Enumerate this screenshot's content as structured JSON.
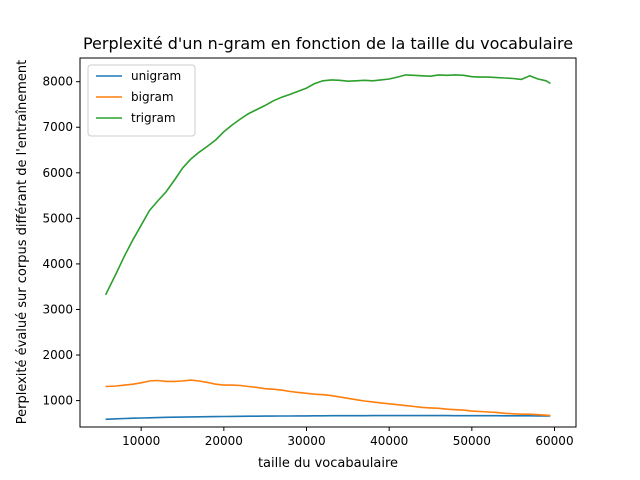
{
  "chart_data": {
    "type": "line",
    "title": "Perplexité d'un n-gram en fonction de la taille du vocabulaire",
    "xlabel": "taille du vocabaulaire",
    "ylabel": "Perplexité évalué sur corpus différant de l'entraînement",
    "xlim": [
      2600,
      62600
    ],
    "ylim": [
      420,
      8520
    ],
    "xticks": [
      10000,
      20000,
      30000,
      40000,
      50000,
      60000
    ],
    "yticks": [
      1000,
      2000,
      3000,
      4000,
      5000,
      6000,
      7000,
      8000
    ],
    "grid": false,
    "legend_position": "upper left",
    "x": [
      5700,
      7000,
      8000,
      9000,
      10000,
      11000,
      12000,
      13000,
      14000,
      15000,
      16000,
      17000,
      18000,
      19000,
      20000,
      21000,
      22000,
      23000,
      24000,
      25000,
      26000,
      27000,
      28000,
      29000,
      30000,
      31000,
      32000,
      33000,
      34000,
      35000,
      36000,
      37000,
      38000,
      39000,
      40000,
      41000,
      42000,
      43000,
      44000,
      45000,
      46000,
      47000,
      48000,
      49000,
      50000,
      51000,
      52000,
      53000,
      54000,
      55000,
      56000,
      57000,
      58000,
      59000,
      59500
    ],
    "series": [
      {
        "name": "unigram",
        "color": "#1f77b4",
        "values": [
          590,
          600,
          607,
          613,
          617,
          622,
          627,
          632,
          635,
          638,
          641,
          644,
          647,
          649,
          651,
          653,
          655,
          657,
          658,
          659,
          660,
          661,
          662,
          663,
          664,
          665,
          666,
          667,
          668,
          668,
          669,
          669,
          670,
          670,
          670,
          670,
          670,
          670,
          670,
          670,
          670,
          670,
          669,
          669,
          668,
          668,
          667,
          667,
          666,
          666,
          665,
          665,
          664,
          663,
          662
        ]
      },
      {
        "name": "bigram",
        "color": "#ff7f0e",
        "values": [
          1310,
          1320,
          1340,
          1360,
          1390,
          1430,
          1440,
          1420,
          1420,
          1430,
          1450,
          1430,
          1400,
          1360,
          1340,
          1340,
          1330,
          1310,
          1290,
          1260,
          1250,
          1230,
          1200,
          1180,
          1160,
          1140,
          1130,
          1110,
          1080,
          1050,
          1020,
          990,
          970,
          950,
          930,
          910,
          890,
          870,
          850,
          840,
          830,
          810,
          800,
          790,
          770,
          760,
          750,
          740,
          720,
          710,
          700,
          700,
          690,
          680,
          670
        ]
      },
      {
        "name": "trigram",
        "color": "#2ca02c",
        "values": [
          3320,
          3800,
          4180,
          4530,
          4850,
          5170,
          5380,
          5580,
          5830,
          6100,
          6300,
          6450,
          6580,
          6720,
          6900,
          7050,
          7180,
          7300,
          7390,
          7480,
          7580,
          7660,
          7720,
          7790,
          7860,
          7960,
          8020,
          8040,
          8030,
          8010,
          8020,
          8030,
          8020,
          8040,
          8060,
          8100,
          8150,
          8140,
          8130,
          8120,
          8150,
          8140,
          8150,
          8140,
          8110,
          8100,
          8100,
          8090,
          8080,
          8070,
          8050,
          8130,
          8060,
          8020,
          7960
        ]
      }
    ]
  }
}
